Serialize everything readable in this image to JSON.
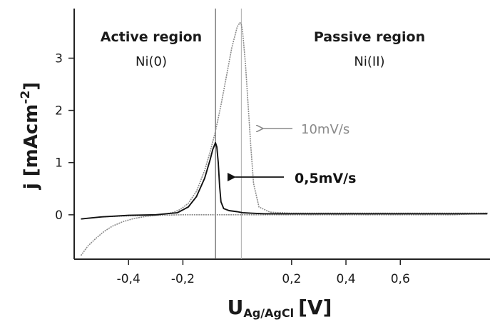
{
  "chart_data": {
    "type": "line",
    "xlabel": {
      "main": "U",
      "sub": "Ag/AgCl",
      "unit": "[V]"
    },
    "ylabel": {
      "prefix": "j [mAcm",
      "exp": "-2",
      "suffix": "]"
    },
    "xlim": [
      -0.6,
      0.93
    ],
    "ylim": [
      -0.85,
      3.95
    ],
    "x_ticks": [
      -0.4,
      -0.2,
      0.2,
      0.4,
      0.6
    ],
    "x_tick_labels": [
      "-0,4",
      "-0,2",
      "0,2",
      "0,4",
      "0,6"
    ],
    "y_ticks": [
      0,
      1,
      2,
      3
    ],
    "y_tick_labels": [
      "0",
      "1",
      "2",
      "3"
    ],
    "vertical_lines": [
      {
        "x": -0.08,
        "color": "#444444"
      },
      {
        "x": 0.015,
        "color": "#aaaaaa"
      }
    ],
    "series": [
      {
        "name": "10mV/s",
        "color": "#8a8a8a",
        "x": [
          -0.575,
          -0.55,
          -0.52,
          -0.49,
          -0.46,
          -0.42,
          -0.38,
          -0.34,
          -0.3,
          -0.27,
          -0.24,
          -0.21,
          -0.18,
          -0.15,
          -0.12,
          -0.1,
          -0.08,
          -0.06,
          -0.04,
          -0.02,
          0.0,
          0.01,
          0.015,
          0.02,
          0.03,
          0.04,
          0.05,
          0.06,
          0.08,
          0.12,
          0.2,
          0.3,
          0.4,
          0.5,
          0.6,
          0.7,
          0.8,
          0.92,
          0.8,
          0.6,
          0.4,
          0.2,
          0.1,
          0.0,
          -0.1,
          -0.2,
          -0.3,
          -0.4,
          -0.5,
          -0.575
        ],
        "y": [
          -0.78,
          -0.6,
          -0.45,
          -0.32,
          -0.22,
          -0.13,
          -0.07,
          -0.035,
          -0.01,
          0.01,
          0.04,
          0.1,
          0.22,
          0.45,
          0.85,
          1.2,
          1.6,
          2.1,
          2.65,
          3.2,
          3.6,
          3.68,
          3.65,
          3.5,
          2.9,
          2.1,
          1.3,
          0.6,
          0.15,
          0.05,
          0.03,
          0.03,
          0.03,
          0.03,
          0.03,
          0.03,
          0.03,
          0.03,
          0.0,
          0.0,
          0.0,
          0.0,
          0.0,
          0.0,
          0.0,
          0.0,
          -0.01,
          -0.02,
          -0.04,
          -0.08
        ]
      },
      {
        "name": "0,5mV/s",
        "color": "#111111",
        "x": [
          -0.575,
          -0.5,
          -0.4,
          -0.3,
          -0.22,
          -0.18,
          -0.15,
          -0.12,
          -0.1,
          -0.09,
          -0.08,
          -0.075,
          -0.07,
          -0.065,
          -0.06,
          -0.05,
          -0.03,
          0.0,
          0.02,
          0.05,
          0.1,
          0.2,
          0.4,
          0.6,
          0.8,
          0.92
        ],
        "y": [
          -0.08,
          -0.04,
          -0.01,
          0.0,
          0.04,
          0.15,
          0.35,
          0.7,
          1.05,
          1.25,
          1.38,
          1.3,
          1.0,
          0.55,
          0.25,
          0.12,
          0.08,
          0.06,
          0.04,
          0.03,
          0.02,
          0.02,
          0.02,
          0.02,
          0.02,
          0.02
        ]
      }
    ],
    "annotations": [
      {
        "title": "Active region",
        "subtitle": "Ni(0)"
      },
      {
        "title": "Passive region",
        "subtitle": "Ni(II)"
      }
    ],
    "arrow_labels": [
      {
        "text": "10mV/s",
        "color": "#8a8a8a",
        "series": "10mV/s"
      },
      {
        "text": "0,5mV/s",
        "color": "#111111",
        "series": "0,5mV/s"
      }
    ]
  }
}
